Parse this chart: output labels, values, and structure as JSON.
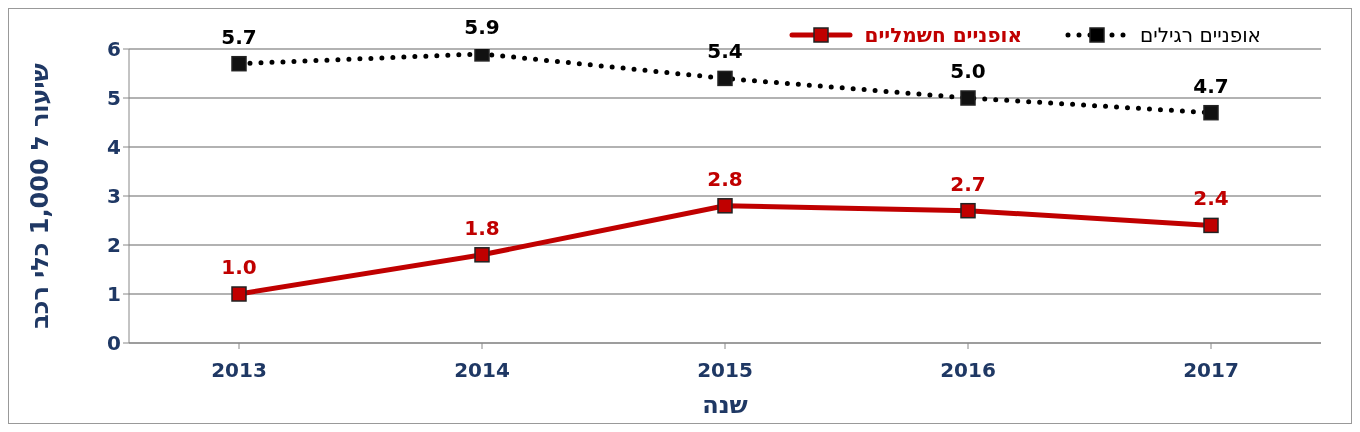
{
  "chart_data": {
    "type": "line",
    "xlabel": "שנה",
    "ylabel": "שיעור ל 1,000 כלי רכב",
    "categories": [
      "2013",
      "2014",
      "2015",
      "2016",
      "2017"
    ],
    "series": [
      {
        "name": "אופניים חשמליים",
        "color": "#c00000",
        "line_style": "solid",
        "values": [
          1.0,
          1.8,
          2.8,
          2.7,
          2.4
        ],
        "value_labels": [
          "1.0",
          "1.8",
          "2.8",
          "2.7",
          "2.4"
        ]
      },
      {
        "name": "אופניים רגילים",
        "color": "#000000",
        "line_style": "dotted",
        "values": [
          5.7,
          5.9,
          5.4,
          5.0,
          4.7
        ],
        "value_labels": [
          "5.7",
          "5.9",
          "5.4",
          "5.0",
          "4.7"
        ]
      }
    ],
    "ylim": [
      0,
      6
    ],
    "yticks": [
      0,
      1,
      2,
      3,
      4,
      5,
      6
    ],
    "grid": "y",
    "legend": "top right",
    "marker": "square"
  }
}
